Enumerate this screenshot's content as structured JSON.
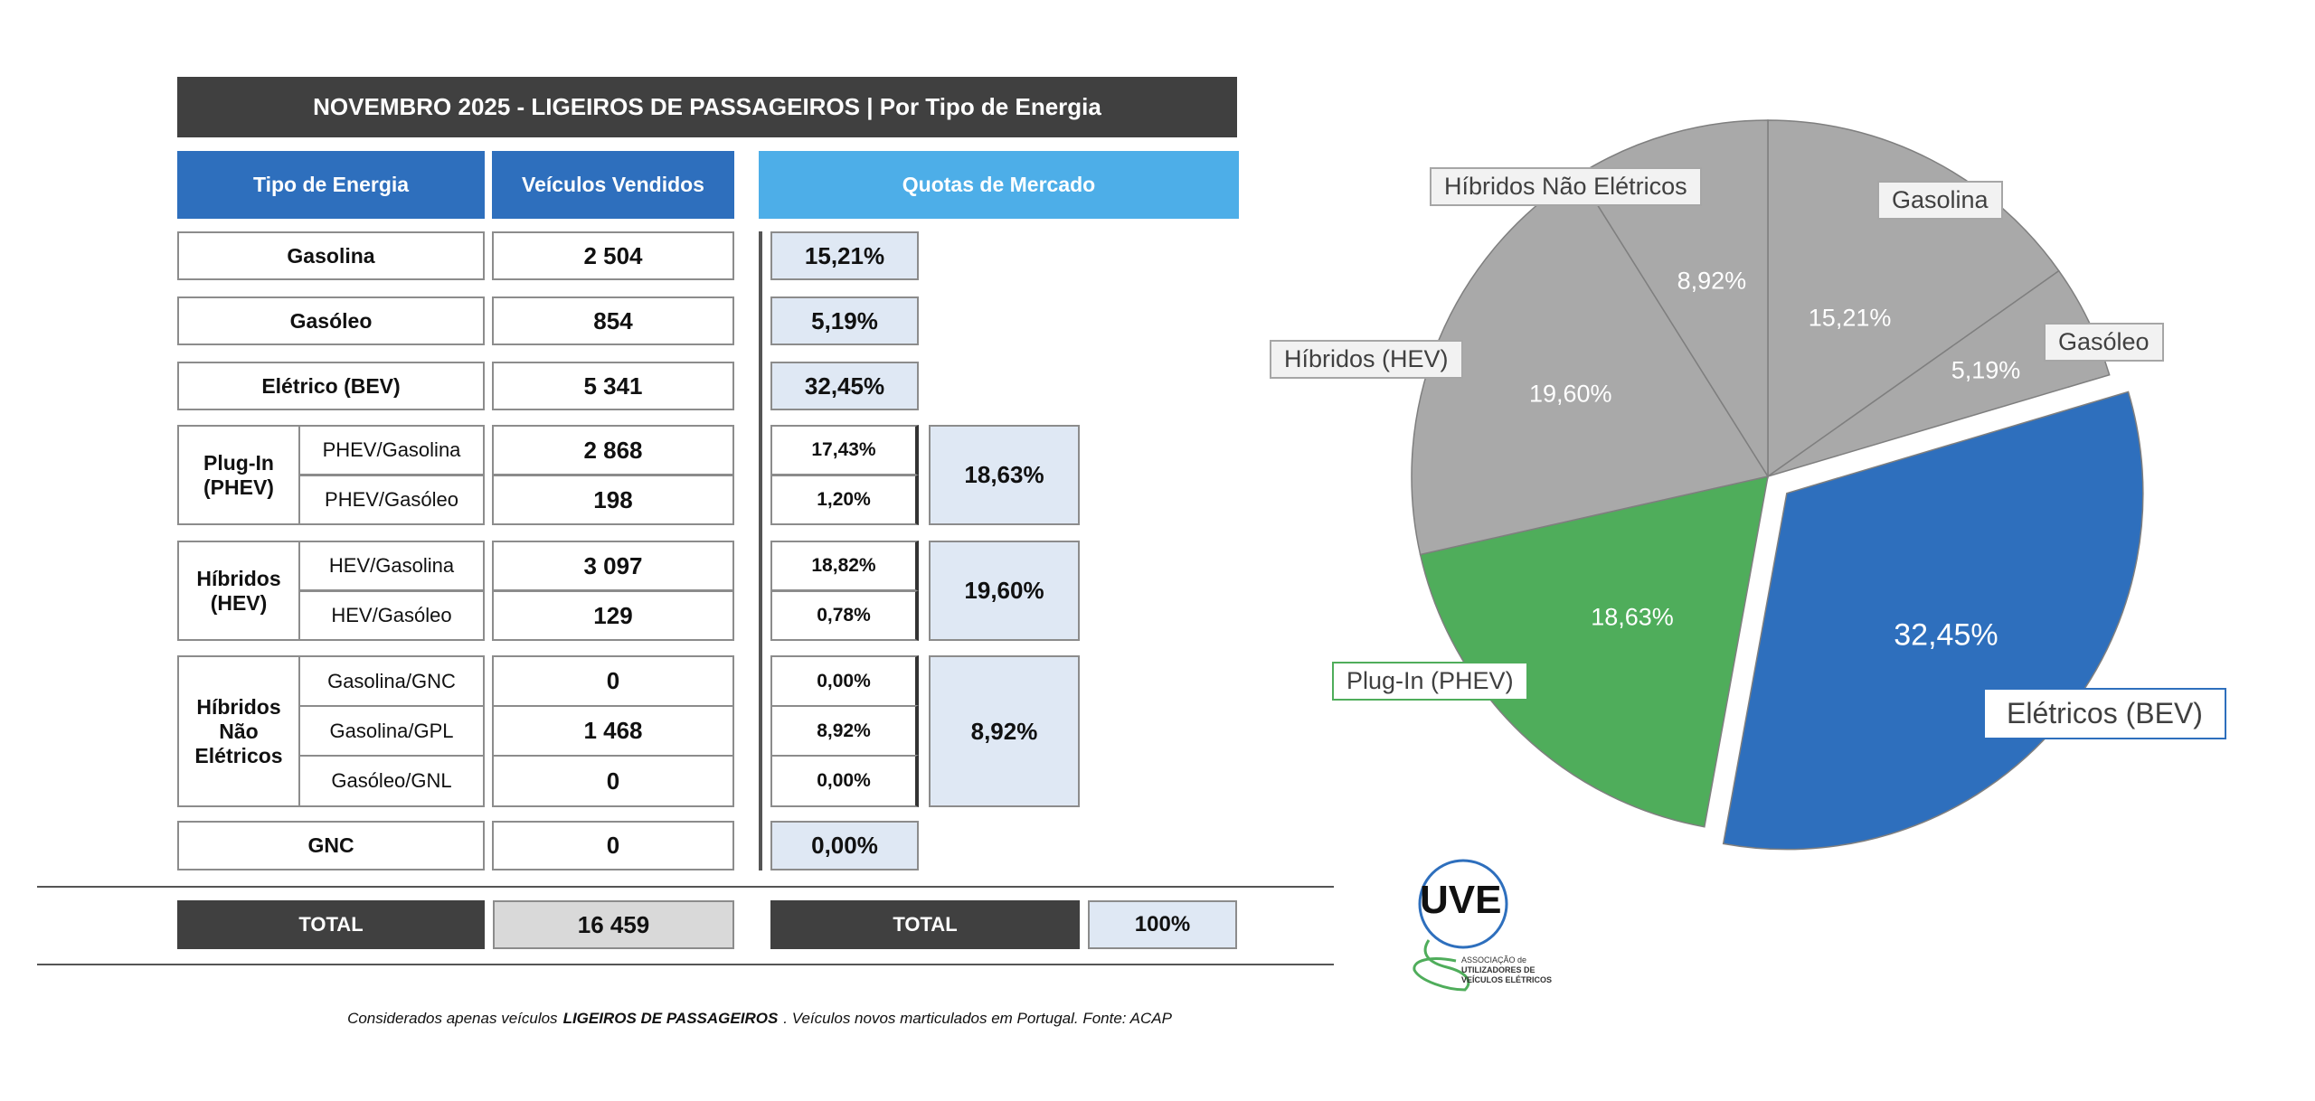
{
  "title": "NOVEMBRO 2025 - LIGEIROS DE PASSAGEIROS | Por Tipo de Energia",
  "headers": {
    "tipo": "Tipo de Energia",
    "vendidos": "Veículos Vendidos",
    "quotas": "Quotas de Mercado"
  },
  "rows": {
    "gasolina": {
      "label": "Gasolina",
      "sold": "2 504",
      "share": "15,21%"
    },
    "gasoleo": {
      "label": "Gasóleo",
      "sold": "854",
      "share": "5,19%"
    },
    "bev": {
      "label": "Elétrico (BEV)",
      "sold": "5 341",
      "share": "32,45%"
    },
    "phev": {
      "group": "Plug-In (PHEV)",
      "total": "18,63%",
      "subs": [
        {
          "label": "PHEV/Gasolina",
          "sold": "2 868",
          "share": "17,43%"
        },
        {
          "label": "PHEV/Gasóleo",
          "sold": "198",
          "share": "1,20%"
        }
      ]
    },
    "hev": {
      "group": "Híbridos (HEV)",
      "total": "19,60%",
      "subs": [
        {
          "label": "HEV/Gasolina",
          "sold": "3 097",
          "share": "18,82%"
        },
        {
          "label": "HEV/Gasóleo",
          "sold": "129",
          "share": "0,78%"
        }
      ]
    },
    "hne": {
      "group": "Híbridos Não Elétricos",
      "total": "8,92%",
      "subs": [
        {
          "label": "Gasolina/GNC",
          "sold": "0",
          "share": "0,00%"
        },
        {
          "label": "Gasolina/GPL",
          "sold": "1 468",
          "share": "8,92%"
        },
        {
          "label": "Gasóleo/GNL",
          "sold": "0",
          "share": "0,00%"
        }
      ]
    },
    "gnc": {
      "label": "GNC",
      "sold": "0",
      "share": "0,00%"
    }
  },
  "total": {
    "label": "TOTAL",
    "sold": "16 459",
    "share_label": "TOTAL",
    "share": "100%"
  },
  "footnote": {
    "pre": "Considerados apenas veículos",
    "bold": "LIGEIROS DE PASSAGEIROS",
    "post": ". Veículos novos marticulados em Portugal. Fonte: ACAP"
  },
  "logo": {
    "text": "UVE",
    "line1": "ASSOCIAÇÃO de",
    "line2": "UTILIZADORES DE",
    "line3": "VEÍCULOS ELÉTRICOS"
  },
  "colors": {
    "dark": "#404040",
    "header_blue": "#2e6fbd",
    "header_light": "#4daee8",
    "quota_bg": "#dfe8f4",
    "gray": "#a6a6a6",
    "blue": "#2e6fbd",
    "green": "#4fad5b"
  },
  "chart_data": {
    "type": "pie",
    "start": "top, clockwise",
    "slices": [
      {
        "name": "Gasolina",
        "value": 15.21,
        "label": "15,21%",
        "color": "#a9a9a9",
        "exploded": false
      },
      {
        "name": "Gasóleo",
        "value": 5.19,
        "label": "5,19%",
        "color": "#a9a9a9",
        "exploded": false
      },
      {
        "name": "Elétricos (BEV)",
        "value": 32.45,
        "label": "32,45%",
        "color": "#2e6fbd",
        "exploded": true
      },
      {
        "name": "Plug-In (PHEV)",
        "value": 18.63,
        "label": "18,63%",
        "color": "#4fad5b",
        "exploded": false
      },
      {
        "name": "Híbridos (HEV)",
        "value": 19.6,
        "label": "19,60%",
        "color": "#a9a9a9",
        "exploded": false
      },
      {
        "name": "Híbridos Não Elétricos",
        "value": 8.92,
        "label": "8,92%",
        "color": "#a9a9a9",
        "exploded": false
      }
    ]
  }
}
